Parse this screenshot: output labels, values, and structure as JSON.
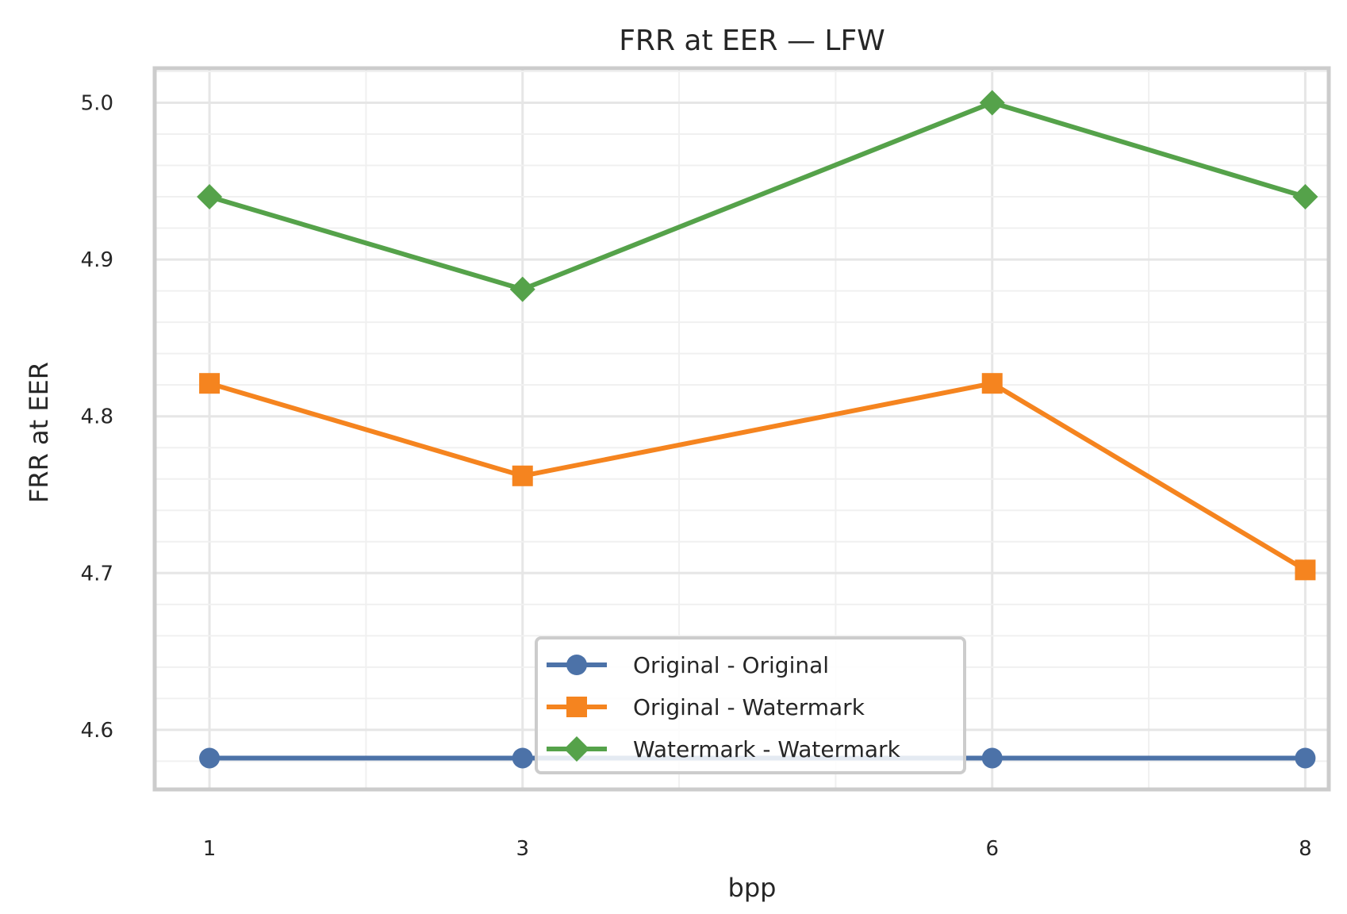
{
  "chart_data": {
    "type": "line",
    "title": "FRR at EER — LFW",
    "xlabel": "bpp",
    "ylabel": "FRR at EER",
    "x": [
      1,
      3,
      6,
      8
    ],
    "xticks": [
      "1",
      "3",
      "6",
      "8"
    ],
    "xlim": [
      0.65,
      8.15
    ],
    "ylim": [
      4.562,
      5.022
    ],
    "yticks": [
      4.6,
      4.7,
      4.8,
      4.9,
      5.0
    ],
    "ytick_labels": [
      "4.6",
      "4.7",
      "4.8",
      "4.9",
      "5.0"
    ],
    "grid": true,
    "legend_position": "bottom-center",
    "series": [
      {
        "name": "Original - Original",
        "values": [
          4.582,
          4.582,
          4.582,
          4.582
        ],
        "color": "#4c72a8",
        "marker": "circle"
      },
      {
        "name": "Original - Watermark",
        "values": [
          4.821,
          4.762,
          4.821,
          4.702
        ],
        "color": "#f5841f",
        "marker": "square"
      },
      {
        "name": "Watermark - Watermark",
        "values": [
          4.94,
          4.881,
          5.0,
          4.94
        ],
        "color": "#55a24a",
        "marker": "diamond"
      }
    ]
  }
}
